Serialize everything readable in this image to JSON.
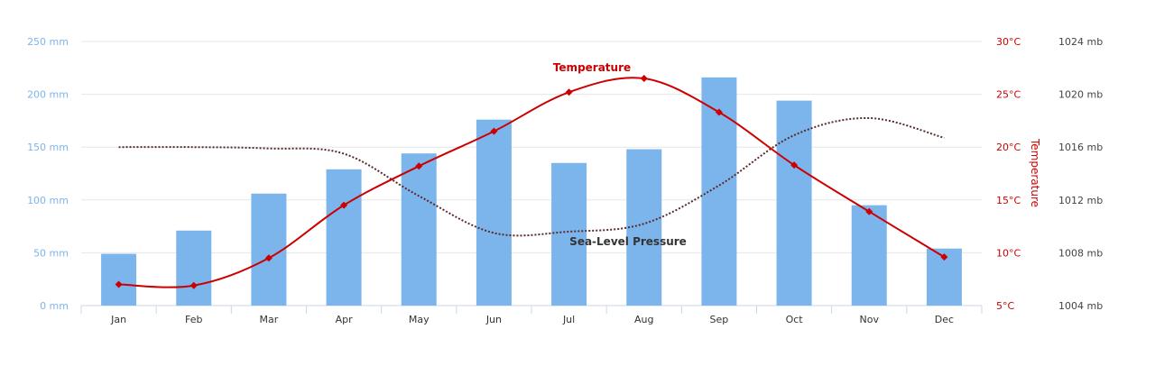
{
  "chart_data": {
    "type": "bar",
    "categories": [
      "Jan",
      "Feb",
      "Mar",
      "Apr",
      "May",
      "Jun",
      "Jul",
      "Aug",
      "Sep",
      "Oct",
      "Nov",
      "Dec"
    ],
    "series": [
      {
        "name": "",
        "type": "bar",
        "axis": "precipitation",
        "color": "#7cb5ec",
        "values": [
          49,
          71,
          106,
          129,
          144,
          176,
          135,
          148,
          216,
          194,
          95,
          54
        ]
      },
      {
        "name": "Temperature",
        "type": "line",
        "axis": "temperature",
        "color": "#cc0000",
        "values": [
          7.0,
          6.9,
          9.5,
          14.5,
          18.2,
          21.5,
          25.2,
          26.5,
          23.3,
          18.3,
          13.9,
          9.6
        ]
      },
      {
        "name": "Sea-Level Pressure",
        "type": "line",
        "axis": "pressure",
        "color": "#5a2a2a",
        "dash": "dotted",
        "values": [
          1016,
          1016,
          1015.9,
          1015.5,
          1012.3,
          1009.5,
          1009.6,
          1010.2,
          1013.1,
          1016.9,
          1018.2,
          1016.7
        ]
      }
    ],
    "axes": {
      "precipitation": {
        "ylim": [
          0,
          250
        ],
        "ticks": [
          "0 mm",
          "50 mm",
          "100 mm",
          "150 mm",
          "200 mm",
          "250 mm"
        ],
        "color": "#7cb5ec"
      },
      "temperature": {
        "ylim": [
          5,
          30
        ],
        "ticks": [
          "5°C",
          "10°C",
          "15°C",
          "20°C",
          "25°C",
          "30°C"
        ],
        "label": "Temperature",
        "color": "#cc0000"
      },
      "pressure": {
        "ylim": [
          1004,
          1024
        ],
        "ticks": [
          "1004 mb",
          "1008 mb",
          "1012 mb",
          "1016 mb",
          "1020 mb",
          "1024 mb"
        ],
        "color": "#444444"
      }
    },
    "grid": true
  }
}
